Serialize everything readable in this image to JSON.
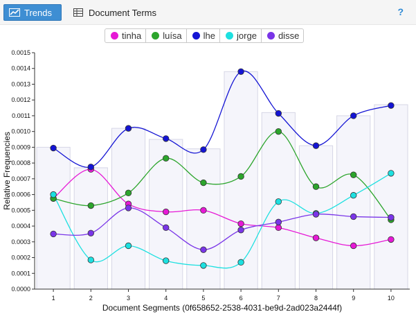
{
  "toolbar": {
    "trends_label": "Trends",
    "terms_label": "Document Terms",
    "help_label": "?"
  },
  "chart_data": {
    "type": "line",
    "xlabel": "Document Segments (0f658652-2538-4031-be9d-2ad023a2444f)",
    "ylabel": "Relative Frequencies",
    "ylim": [
      0,
      0.0015
    ],
    "x": [
      1,
      2,
      3,
      4,
      5,
      6,
      7,
      8,
      9,
      10
    ],
    "y_ticks": [
      "0.0000",
      "0.0001",
      "0.0002",
      "0.0003",
      "0.0004",
      "0.0005",
      "0.0006",
      "0.0007",
      "0.0008",
      "0.0009",
      "0.0010",
      "0.0011",
      "0.0012",
      "0.0013",
      "0.0014",
      "0.0015"
    ],
    "x_ticks": [
      "1",
      "2",
      "3",
      "4",
      "5",
      "6",
      "7",
      "8",
      "9",
      "10"
    ],
    "grid": false,
    "legend_position": "top",
    "bar_values": [
      0.0009,
      0.00077,
      0.00102,
      0.00095,
      0.00089,
      0.00138,
      0.00112,
      0.00091,
      0.0011,
      0.00117
    ],
    "series": [
      {
        "name": "tinha",
        "color": "#e619d6",
        "values": [
          0.000575,
          0.00076,
          0.00054,
          0.00049,
          0.0005,
          0.000415,
          0.00039,
          0.000325,
          0.000275,
          0.000315
        ]
      },
      {
        "name": "luísa",
        "color": "#2ca52c",
        "values": [
          0.000575,
          0.00053,
          0.00061,
          0.00083,
          0.000675,
          0.000715,
          0.001,
          0.00065,
          0.000725,
          0.00044
        ]
      },
      {
        "name": "lhe",
        "color": "#1414d4",
        "values": [
          0.000895,
          0.000775,
          0.00102,
          0.000955,
          0.000885,
          0.00138,
          0.001115,
          0.00091,
          0.0011,
          0.001165
        ]
      },
      {
        "name": "jorge",
        "color": "#1de0e0",
        "values": [
          0.0006,
          0.000185,
          0.000275,
          0.00018,
          0.00015,
          0.00017,
          0.000555,
          0.00048,
          0.000595,
          0.000735
        ]
      },
      {
        "name": "disse",
        "color": "#7a35e8",
        "values": [
          0.00035,
          0.000355,
          0.000515,
          0.00039,
          0.00025,
          0.000375,
          0.000425,
          0.000475,
          0.00046,
          0.000455
        ]
      }
    ]
  }
}
